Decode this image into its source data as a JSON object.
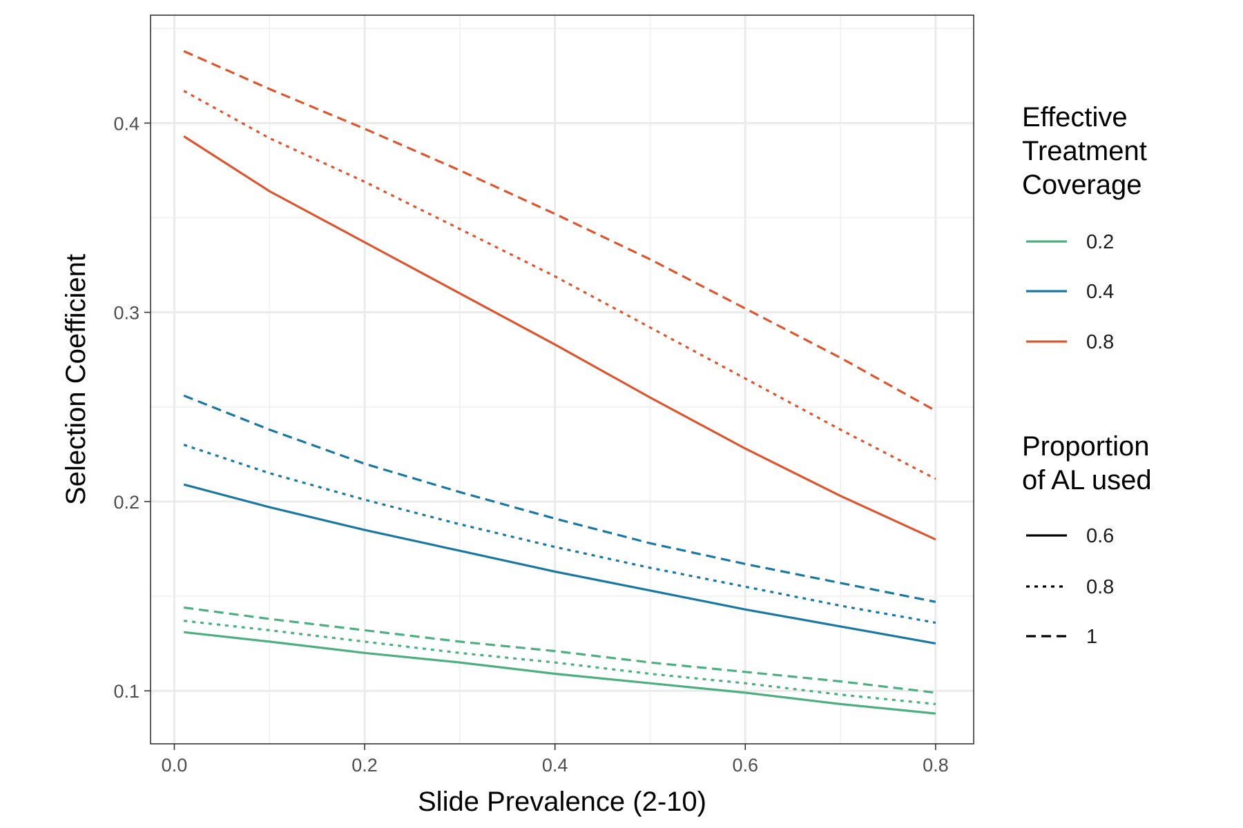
{
  "chart_data": {
    "type": "line",
    "xlabel": "Slide Prevalence (2-10)",
    "ylabel": "Selection Coefficient",
    "xlim": [
      -0.025,
      0.84
    ],
    "ylim": [
      0.072,
      0.457
    ],
    "x_ticks": [
      0.0,
      0.2,
      0.4,
      0.6,
      0.8
    ],
    "x_tick_labels": [
      "0.0",
      "0.2",
      "0.4",
      "0.6",
      "0.8"
    ],
    "y_ticks": [
      0.1,
      0.2,
      0.3,
      0.4
    ],
    "y_tick_labels": [
      "0.1",
      "0.2",
      "0.3",
      "0.4"
    ],
    "grid": true,
    "x": [
      0.01,
      0.1,
      0.2,
      0.3,
      0.4,
      0.5,
      0.6,
      0.7,
      0.8
    ],
    "series": [
      {
        "coverage": "0.2",
        "al": "0.6",
        "values": [
          0.131,
          0.126,
          0.12,
          0.115,
          0.109,
          0.104,
          0.099,
          0.093,
          0.088
        ]
      },
      {
        "coverage": "0.2",
        "al": "0.8",
        "values": [
          0.137,
          0.132,
          0.126,
          0.12,
          0.115,
          0.109,
          0.104,
          0.098,
          0.093
        ]
      },
      {
        "coverage": "0.2",
        "al": "1",
        "values": [
          0.144,
          0.138,
          0.132,
          0.126,
          0.121,
          0.115,
          0.11,
          0.105,
          0.099
        ]
      },
      {
        "coverage": "0.4",
        "al": "0.6",
        "values": [
          0.209,
          0.197,
          0.185,
          0.174,
          0.163,
          0.153,
          0.143,
          0.134,
          0.125
        ]
      },
      {
        "coverage": "0.4",
        "al": "0.8",
        "values": [
          0.23,
          0.215,
          0.201,
          0.188,
          0.176,
          0.165,
          0.155,
          0.145,
          0.136
        ]
      },
      {
        "coverage": "0.4",
        "al": "1",
        "values": [
          0.256,
          0.238,
          0.22,
          0.205,
          0.191,
          0.178,
          0.167,
          0.157,
          0.147
        ]
      },
      {
        "coverage": "0.8",
        "al": "0.6",
        "values": [
          0.393,
          0.364,
          0.337,
          0.31,
          0.283,
          0.255,
          0.228,
          0.203,
          0.18
        ]
      },
      {
        "coverage": "0.8",
        "al": "0.8",
        "values": [
          0.417,
          0.392,
          0.369,
          0.344,
          0.319,
          0.292,
          0.265,
          0.238,
          0.212
        ]
      },
      {
        "coverage": "0.8",
        "al": "1",
        "values": [
          0.438,
          0.418,
          0.397,
          0.375,
          0.352,
          0.328,
          0.302,
          0.276,
          0.248
        ]
      }
    ],
    "legends": [
      {
        "title": "Effective Treatment Coverage",
        "title_lines": [
          "Effective",
          "Treatment",
          "Coverage"
        ],
        "kind": "color",
        "entries": [
          {
            "label": "0.2",
            "color": "#4daf7f"
          },
          {
            "label": "0.4",
            "color": "#1a77a0"
          },
          {
            "label": "0.8",
            "color": "#d95630"
          }
        ]
      },
      {
        "title": "Proportion of AL used",
        "title_lines": [
          "Proportion",
          "of AL used"
        ],
        "kind": "linetype",
        "entries": [
          {
            "label": "0.6",
            "dash": "solid"
          },
          {
            "label": "0.8",
            "dash": "dotted"
          },
          {
            "label": "1",
            "dash": "dashed"
          }
        ]
      }
    ],
    "legend_placement": "right"
  }
}
